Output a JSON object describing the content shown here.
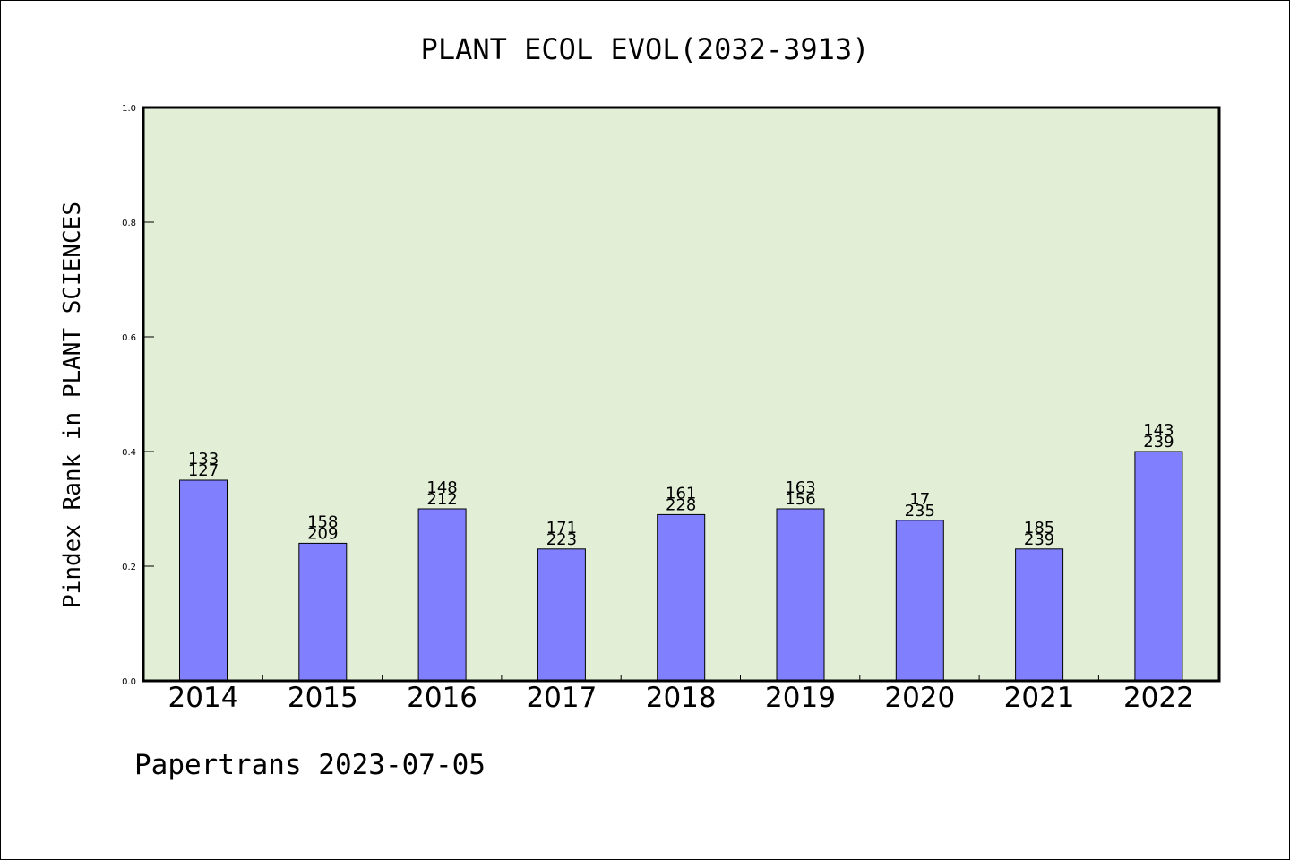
{
  "chart_data": {
    "type": "bar",
    "title": "PLANT ECOL EVOL(2032-3913)",
    "ylabel": "Pindex Rank in PLANT SCIENCES",
    "xlabel": "",
    "categories": [
      "2014",
      "2015",
      "2016",
      "2017",
      "2018",
      "2019",
      "2020",
      "2021",
      "2022"
    ],
    "values": [
      0.35,
      0.24,
      0.3,
      0.23,
      0.29,
      0.3,
      0.28,
      0.23,
      0.4
    ],
    "label_top": [
      "133",
      "158",
      "148",
      "171",
      "161",
      "163",
      "17",
      "185",
      "143"
    ],
    "label_bottom": [
      "127",
      "209",
      "212",
      "223",
      "228",
      "156",
      "235",
      "239",
      "239"
    ],
    "ylim": [
      0,
      1.0
    ],
    "yticks": [
      "0.0",
      "0.2",
      "0.4",
      "0.6",
      "0.8",
      "1.0"
    ],
    "grid": false,
    "bar_color": "#8080ff",
    "plot_background": "#e2efd6"
  },
  "footer": "Papertrans 2023-07-05"
}
